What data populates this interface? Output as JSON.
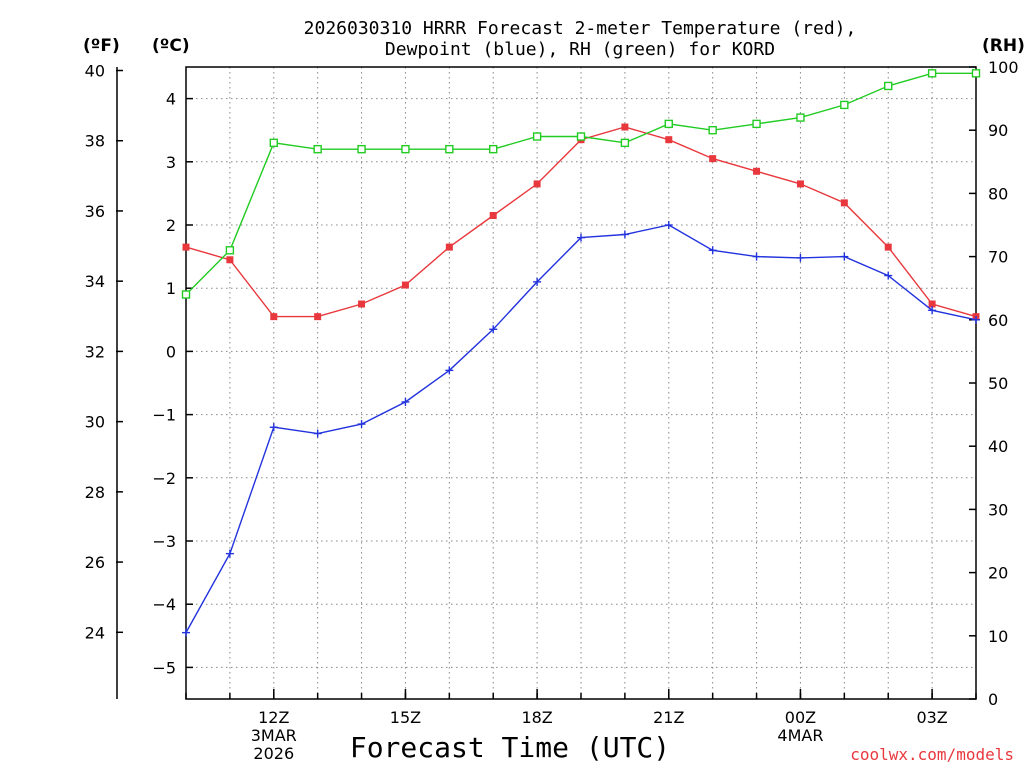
{
  "header": {
    "title_line1": "2026030310 HRRR Forecast 2-meter Temperature (red),",
    "title_line2": "Dewpoint (blue), RH (green) for KORD",
    "unit_f": "(ºF)",
    "unit_c": "(ºC)",
    "unit_rh": "(RH)"
  },
  "xaxis_title": "Forecast Time (UTC)",
  "credit": "coolwx.com/models",
  "colors": {
    "temperature": "#e8383d",
    "dewpoint": "#2233dd",
    "rh": "#22cc22",
    "grid": "#888888"
  },
  "chart_data": {
    "type": "line",
    "title": "2026030310 HRRR Forecast 2-meter Temperature (red), Dewpoint (blue), RH (green) for KORD",
    "xlabel": "Forecast Time (UTC)",
    "x": [
      "10Z",
      "11Z",
      "12Z",
      "13Z",
      "14Z",
      "15Z",
      "16Z",
      "17Z",
      "18Z",
      "19Z",
      "20Z",
      "21Z",
      "22Z",
      "23Z",
      "00Z",
      "01Z",
      "02Z",
      "03Z",
      "04Z"
    ],
    "xticks": [
      {
        "index": 2,
        "label": "12Z",
        "sub1": "3MAR",
        "sub2": "2026"
      },
      {
        "index": 5,
        "label": "15Z",
        "sub1": "",
        "sub2": ""
      },
      {
        "index": 8,
        "label": "18Z",
        "sub1": "",
        "sub2": ""
      },
      {
        "index": 11,
        "label": "21Z",
        "sub1": "",
        "sub2": ""
      },
      {
        "index": 14,
        "label": "00Z",
        "sub1": "4MAR",
        "sub2": ""
      },
      {
        "index": 17,
        "label": "03Z",
        "sub1": "",
        "sub2": ""
      }
    ],
    "axes": {
      "celsius": {
        "range": [
          -5.5,
          4.5
        ],
        "ticks": [
          -5,
          -4,
          -3,
          -2,
          -1,
          0,
          1,
          2,
          3,
          4
        ]
      },
      "fahrenheit": {
        "range": [
          22.1,
          40.1
        ],
        "ticks": [
          24,
          26,
          28,
          30,
          32,
          34,
          36,
          38,
          40
        ]
      },
      "rh": {
        "range": [
          0,
          100
        ],
        "ticks": [
          0,
          10,
          20,
          30,
          40,
          50,
          60,
          70,
          80,
          90,
          100
        ]
      }
    },
    "grid": true,
    "series": [
      {
        "name": "Temperature",
        "units": "C",
        "marker": "filled-square",
        "values": [
          1.65,
          1.45,
          0.55,
          0.55,
          0.75,
          1.05,
          1.65,
          2.15,
          2.65,
          3.35,
          3.55,
          3.35,
          3.05,
          2.85,
          2.65,
          2.35,
          1.65,
          0.75,
          0.55
        ]
      },
      {
        "name": "Dewpoint",
        "units": "C",
        "marker": "plus",
        "values": [
          -4.45,
          -3.2,
          -1.2,
          -1.3,
          -1.15,
          -0.8,
          -0.3,
          0.35,
          1.1,
          1.8,
          1.85,
          2.0,
          1.6,
          1.5,
          1.48,
          1.5,
          1.2,
          0.65,
          0.5
        ]
      },
      {
        "name": "RH",
        "units": "%",
        "marker": "open-square",
        "values": [
          64,
          71,
          88,
          87,
          87,
          87,
          87,
          87,
          89,
          89,
          88,
          91,
          90,
          91,
          92,
          94,
          97,
          99,
          99
        ]
      }
    ]
  }
}
